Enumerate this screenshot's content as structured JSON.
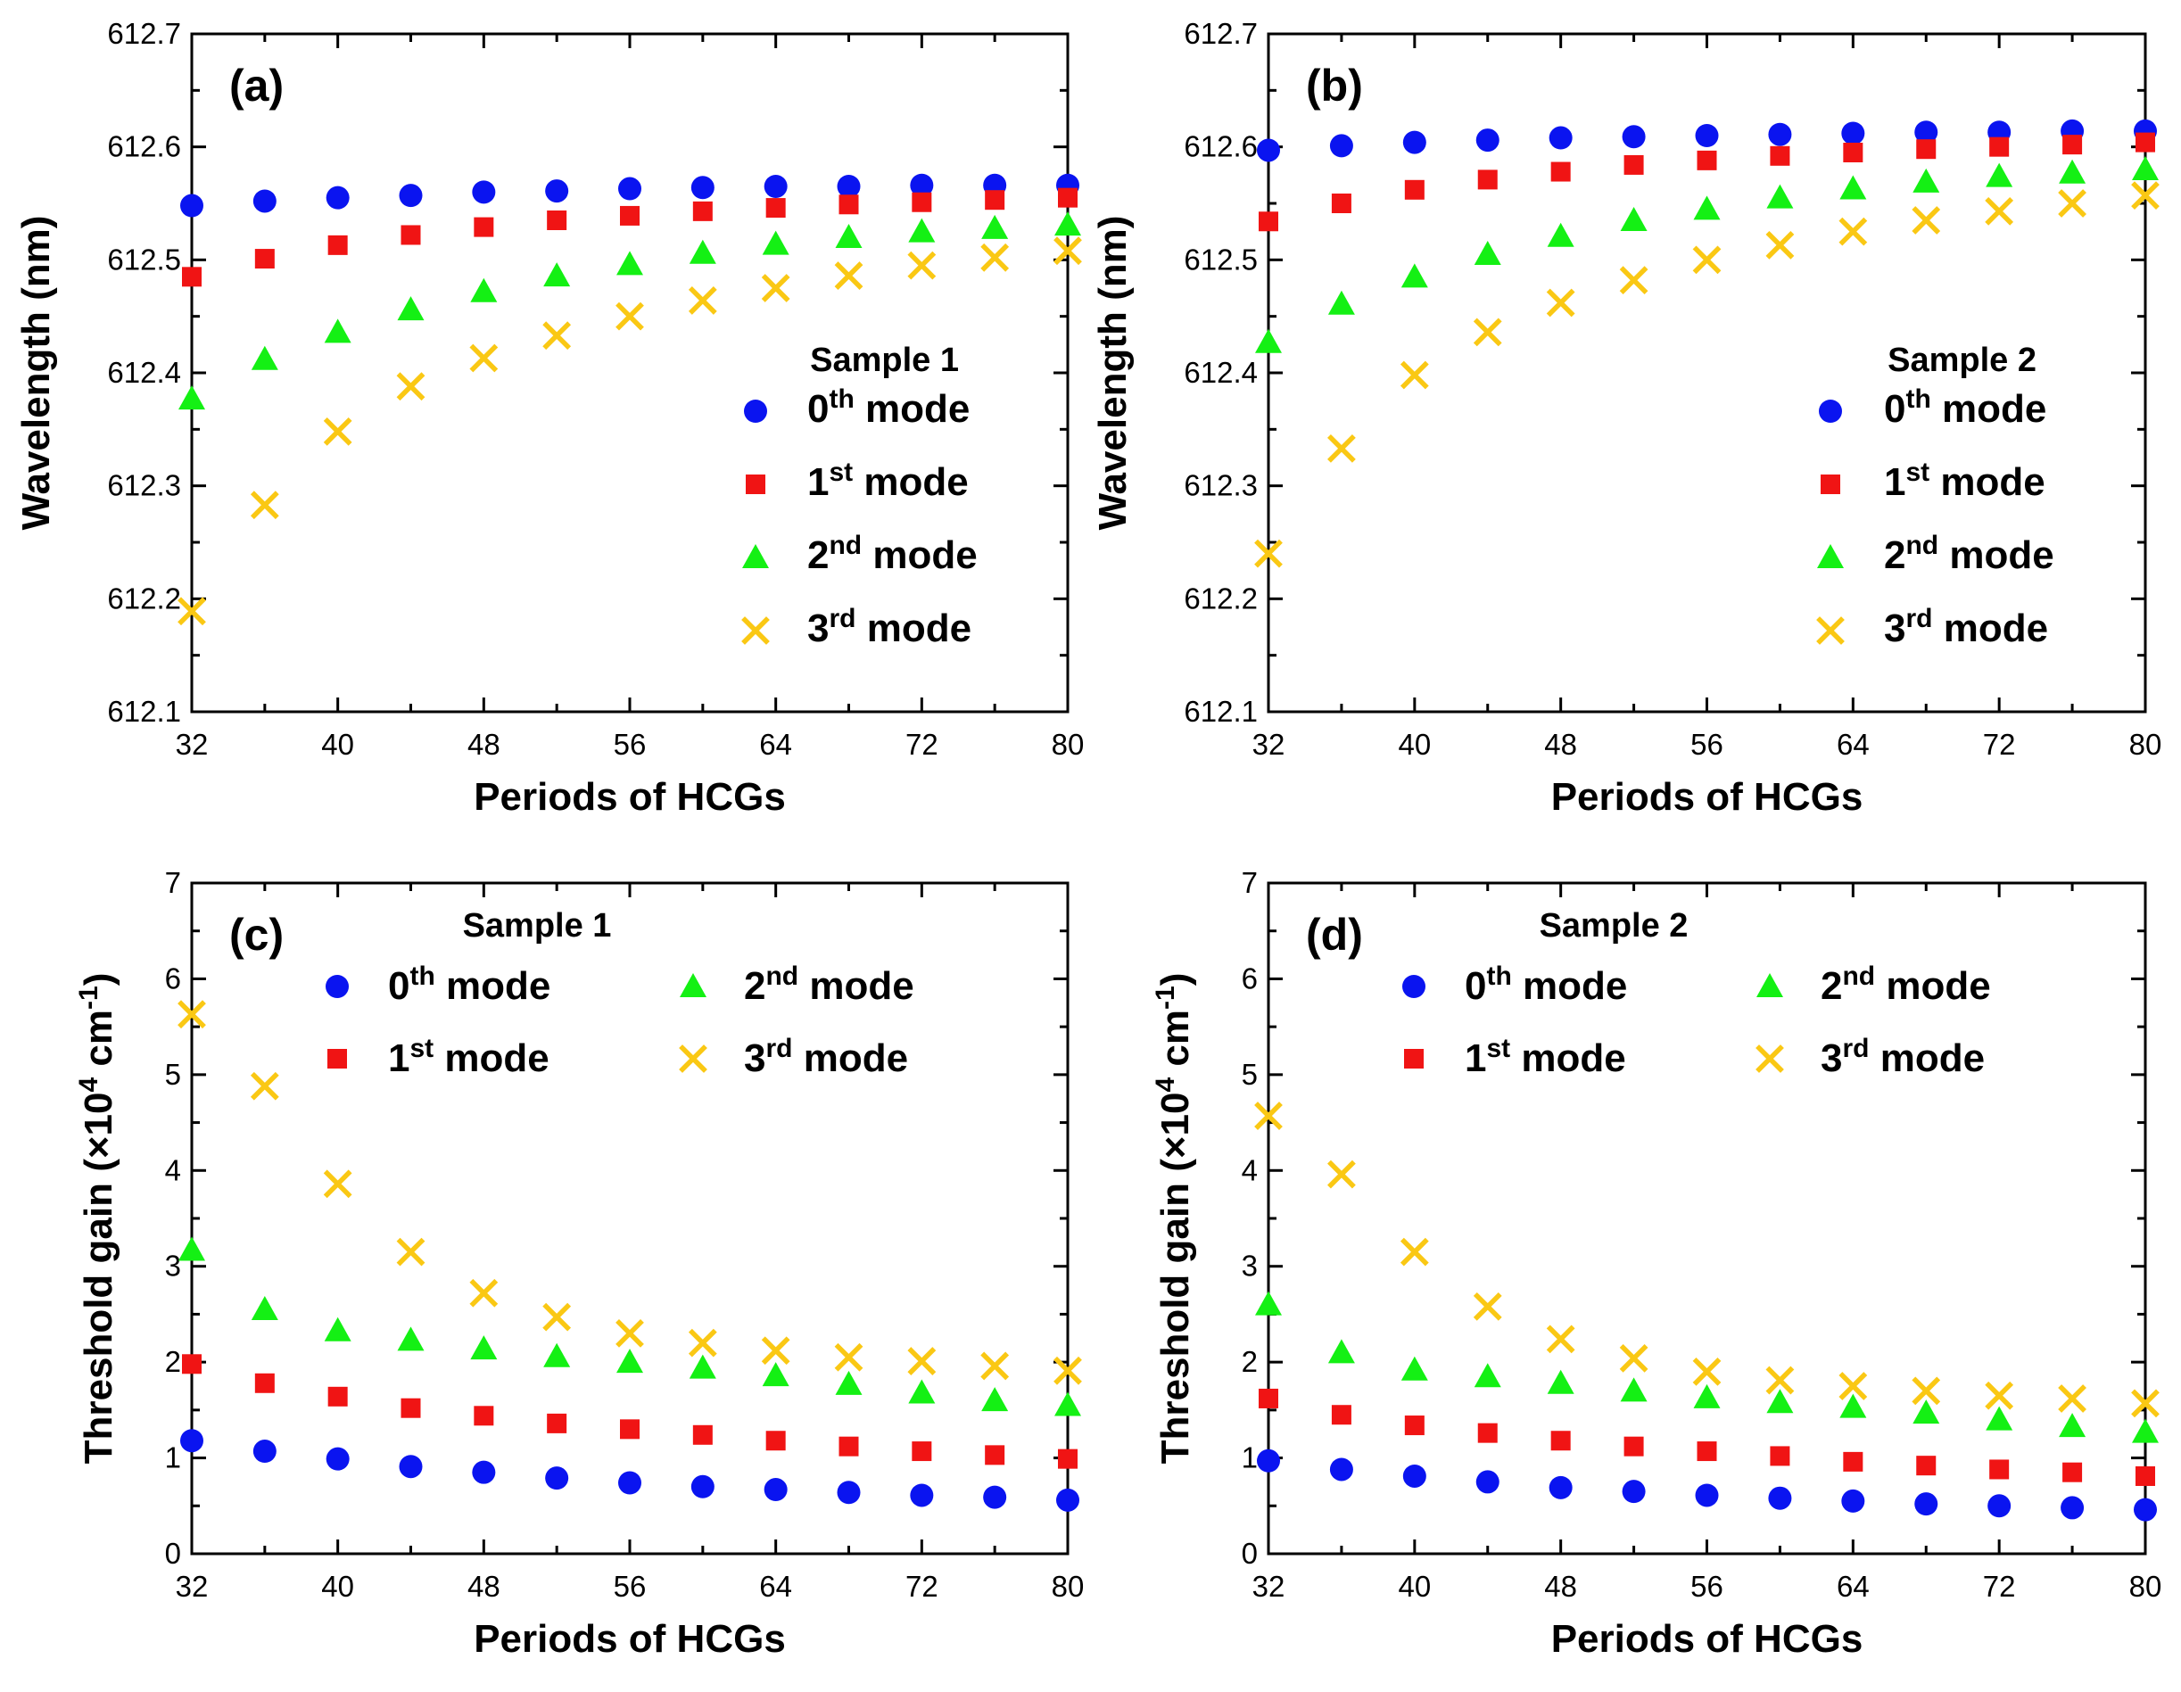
{
  "colors": {
    "mode0": "#0a14f0",
    "mode1": "#f01414",
    "mode2": "#14f014",
    "mode3": "#fac814",
    "axis": "#000000"
  },
  "chart_data": [
    {
      "panel_label": "(a)",
      "type": "scatter",
      "ylabel": "Wavelength (nm)",
      "xlabel": "Periods of HCGs",
      "xlim": [
        32,
        80
      ],
      "ylim": [
        612.1,
        612.7
      ],
      "xticks": [
        "32",
        "40",
        "48",
        "56",
        "64",
        "72",
        "80"
      ],
      "yticks": [
        "612.1",
        "612.2",
        "612.3",
        "612.4",
        "612.5",
        "612.6",
        "612.7"
      ],
      "legend_title": "Sample 1",
      "x": [
        32,
        36,
        40,
        44,
        48,
        52,
        56,
        60,
        64,
        68,
        72,
        76,
        80
      ],
      "series": [
        {
          "name": "0th mode",
          "marker": "circle",
          "values": [
            612.548,
            612.552,
            612.555,
            612.557,
            612.56,
            612.561,
            612.563,
            612.564,
            612.565,
            612.565,
            612.566,
            612.566,
            612.566
          ]
        },
        {
          "name": "1st mode",
          "marker": "square",
          "values": [
            612.485,
            612.501,
            612.513,
            612.522,
            612.529,
            612.535,
            612.539,
            612.543,
            612.546,
            612.549,
            612.551,
            612.553,
            612.555
          ]
        },
        {
          "name": "2nd mode",
          "marker": "triangle",
          "values": [
            612.377,
            612.412,
            612.436,
            612.456,
            612.472,
            612.486,
            612.496,
            612.506,
            612.514,
            612.52,
            612.525,
            612.528,
            612.531
          ]
        },
        {
          "name": "3rd mode",
          "marker": "cross",
          "values": [
            612.189,
            612.283,
            612.348,
            612.388,
            612.413,
            612.433,
            612.45,
            612.464,
            612.475,
            612.486,
            612.495,
            612.502,
            612.508
          ]
        }
      ]
    },
    {
      "panel_label": "(b)",
      "type": "scatter",
      "ylabel": "Wavelength (nm)",
      "xlabel": "Periods of HCGs",
      "xlim": [
        32,
        80
      ],
      "ylim": [
        612.1,
        612.7
      ],
      "xticks": [
        "32",
        "40",
        "48",
        "56",
        "64",
        "72",
        "80"
      ],
      "yticks": [
        "612.1",
        "612.2",
        "612.3",
        "612.4",
        "612.5",
        "612.6",
        "612.7"
      ],
      "legend_title": "Sample 2",
      "x": [
        32,
        36,
        40,
        44,
        48,
        52,
        56,
        60,
        64,
        68,
        72,
        76,
        80
      ],
      "series": [
        {
          "name": "0th mode",
          "marker": "circle",
          "values": [
            612.597,
            612.601,
            612.604,
            612.606,
            612.608,
            612.609,
            612.61,
            612.611,
            612.612,
            612.613,
            612.613,
            612.614,
            612.614
          ]
        },
        {
          "name": "1st mode",
          "marker": "square",
          "values": [
            612.534,
            612.55,
            612.562,
            612.571,
            612.578,
            612.584,
            612.588,
            612.592,
            612.595,
            612.598,
            612.6,
            612.602,
            612.604
          ]
        },
        {
          "name": "2nd mode",
          "marker": "triangle",
          "values": [
            612.427,
            612.461,
            612.485,
            612.505,
            612.521,
            612.535,
            612.545,
            612.555,
            612.563,
            612.569,
            612.574,
            612.577,
            612.58
          ]
        },
        {
          "name": "3rd mode",
          "marker": "cross",
          "values": [
            612.24,
            612.333,
            612.398,
            612.436,
            612.462,
            612.482,
            612.5,
            612.513,
            612.525,
            612.535,
            612.543,
            612.55,
            612.557
          ]
        }
      ]
    },
    {
      "panel_label": "(c)",
      "type": "scatter",
      "ylabel_main": "Threshold gain (×10",
      "ylabel_exp": "4",
      "ylabel_unit": " cm",
      "ylabel_unit_exp": "-1",
      "ylabel_close": ")",
      "xlabel": "Periods of HCGs",
      "xlim": [
        32,
        80
      ],
      "ylim": [
        0,
        7
      ],
      "xticks": [
        "32",
        "40",
        "48",
        "56",
        "64",
        "72",
        "80"
      ],
      "yticks": [
        "0",
        "1",
        "2",
        "3",
        "4",
        "5",
        "6",
        "7"
      ],
      "legend_title": "Sample 1",
      "x": [
        32,
        36,
        40,
        44,
        48,
        52,
        56,
        60,
        64,
        68,
        72,
        76,
        80
      ],
      "series": [
        {
          "name": "0th mode",
          "marker": "circle",
          "values": [
            1.18,
            1.07,
            0.99,
            0.91,
            0.85,
            0.79,
            0.74,
            0.7,
            0.67,
            0.64,
            0.61,
            0.59,
            0.56
          ]
        },
        {
          "name": "1st mode",
          "marker": "square",
          "values": [
            1.98,
            1.78,
            1.64,
            1.52,
            1.44,
            1.36,
            1.3,
            1.24,
            1.18,
            1.12,
            1.07,
            1.03,
            0.99
          ]
        },
        {
          "name": "2nd mode",
          "marker": "triangle",
          "values": [
            3.17,
            2.55,
            2.33,
            2.23,
            2.14,
            2.06,
            2.0,
            1.94,
            1.86,
            1.77,
            1.68,
            1.6,
            1.55
          ]
        },
        {
          "name": "3rd mode",
          "marker": "cross",
          "values": [
            5.63,
            4.88,
            3.86,
            3.15,
            2.72,
            2.47,
            2.3,
            2.2,
            2.12,
            2.05,
            2.01,
            1.96,
            1.91
          ]
        }
      ]
    },
    {
      "panel_label": "(d)",
      "type": "scatter",
      "ylabel_main": "Threshold gain (×10",
      "ylabel_exp": "4",
      "ylabel_unit": " cm",
      "ylabel_unit_exp": "-1",
      "ylabel_close": ")",
      "xlabel": "Periods of HCGs",
      "xlim": [
        32,
        80
      ],
      "ylim": [
        0,
        7
      ],
      "xticks": [
        "32",
        "40",
        "48",
        "56",
        "64",
        "72",
        "80"
      ],
      "yticks": [
        "0",
        "1",
        "2",
        "3",
        "4",
        "5",
        "6",
        "7"
      ],
      "legend_title": "Sample 2",
      "x": [
        32,
        36,
        40,
        44,
        48,
        52,
        56,
        60,
        64,
        68,
        72,
        76,
        80
      ],
      "series": [
        {
          "name": "0th mode",
          "marker": "circle",
          "values": [
            0.97,
            0.88,
            0.81,
            0.75,
            0.69,
            0.65,
            0.61,
            0.58,
            0.55,
            0.52,
            0.5,
            0.48,
            0.46
          ]
        },
        {
          "name": "1st mode",
          "marker": "square",
          "values": [
            1.62,
            1.45,
            1.34,
            1.26,
            1.18,
            1.12,
            1.07,
            1.02,
            0.96,
            0.92,
            0.88,
            0.85,
            0.81
          ]
        },
        {
          "name": "2nd mode",
          "marker": "triangle",
          "values": [
            2.6,
            2.1,
            1.92,
            1.85,
            1.78,
            1.7,
            1.63,
            1.58,
            1.53,
            1.47,
            1.4,
            1.33,
            1.27
          ]
        },
        {
          "name": "3rd mode",
          "marker": "cross",
          "values": [
            4.57,
            3.96,
            3.15,
            2.58,
            2.24,
            2.04,
            1.9,
            1.81,
            1.75,
            1.7,
            1.65,
            1.62,
            1.57
          ]
        }
      ]
    }
  ],
  "legend_labels": [
    {
      "num": "0",
      "sup": "th",
      "rest": " mode"
    },
    {
      "num": "1",
      "sup": "st",
      "rest": " mode"
    },
    {
      "num": "2",
      "sup": "nd",
      "rest": " mode"
    },
    {
      "num": "3",
      "sup": "rd",
      "rest": " mode"
    }
  ]
}
